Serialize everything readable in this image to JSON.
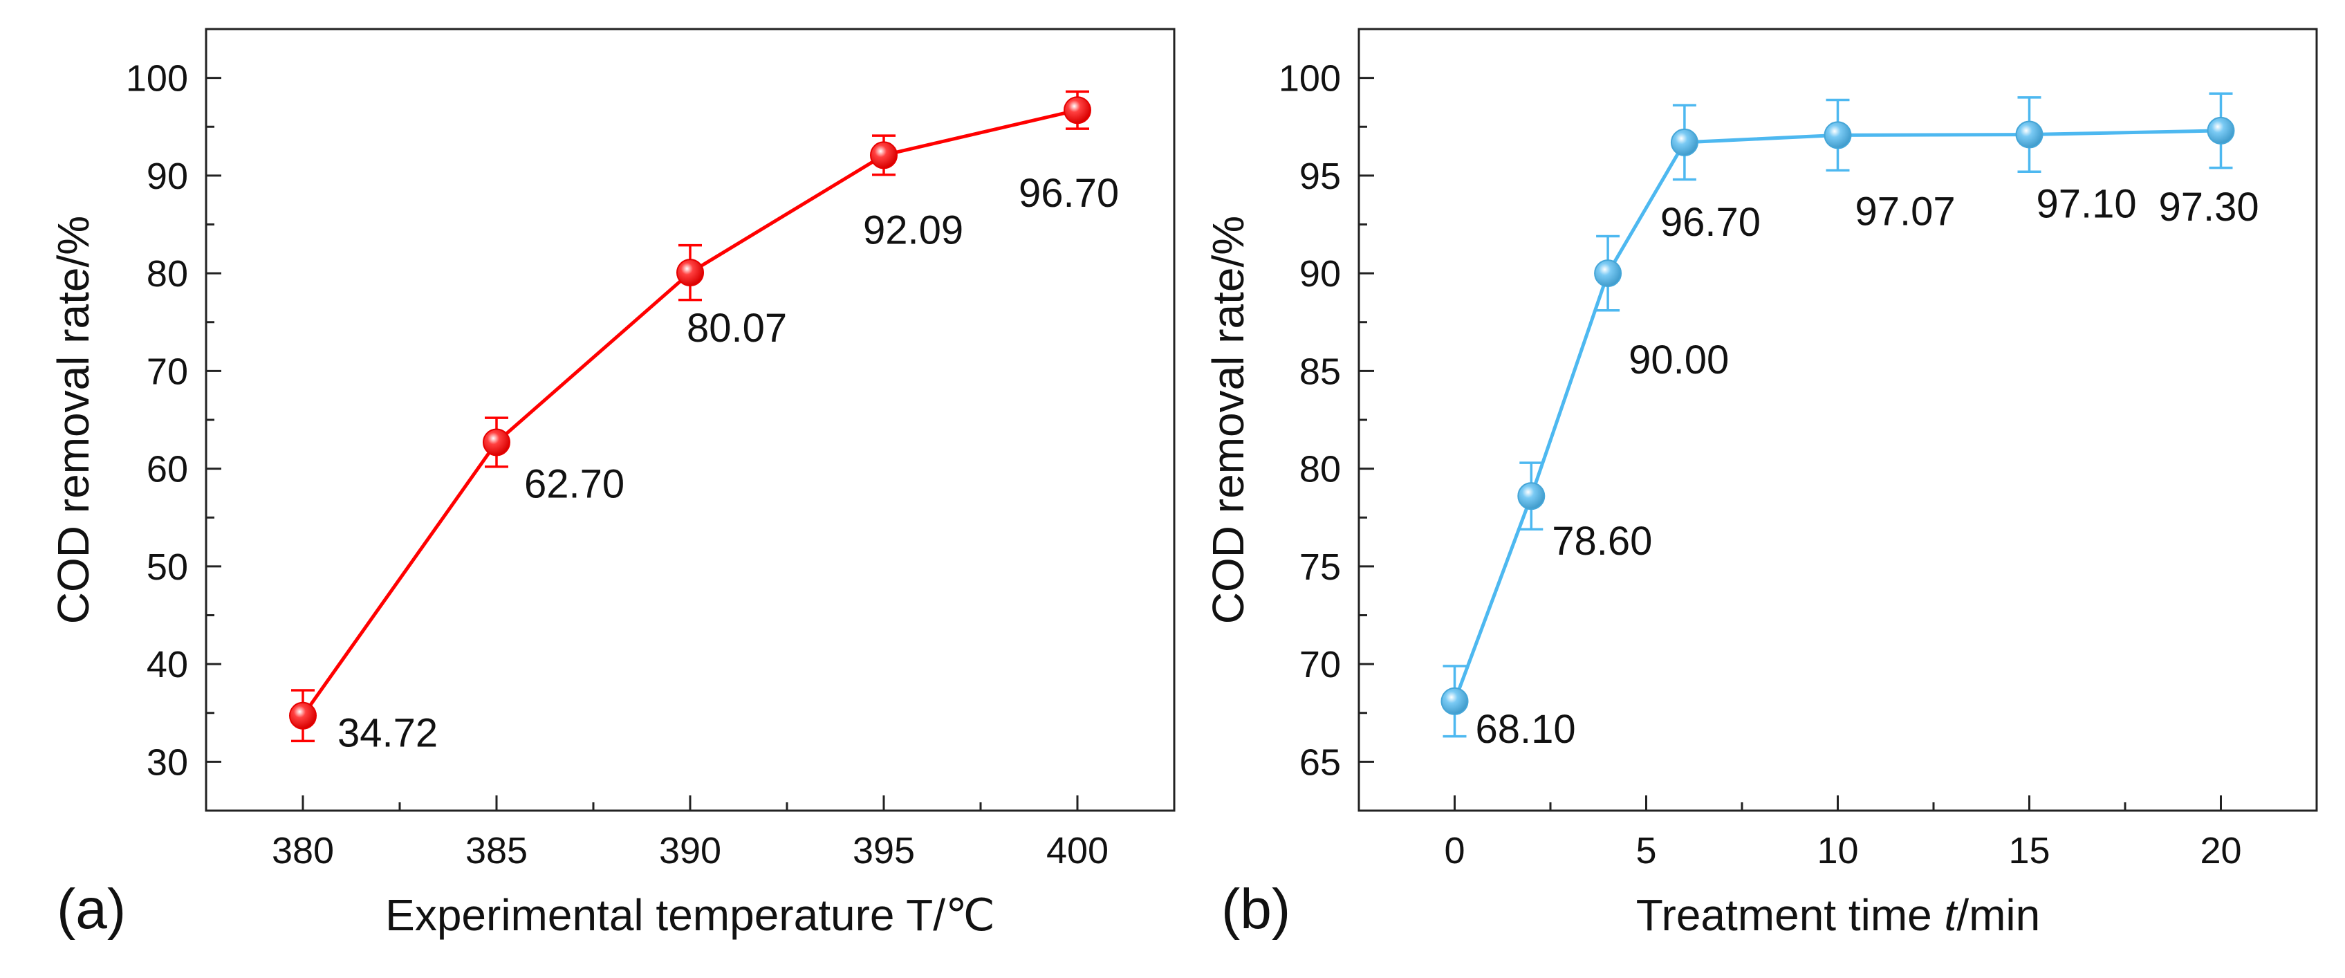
{
  "chart_data": [
    {
      "type": "line",
      "panel_label": "(a)",
      "title": "",
      "xlabel": "Experimental temperature T/℃",
      "ylabel": "COD removal rate/%",
      "color": "#ff0000",
      "x": [
        380,
        385,
        390,
        395,
        400
      ],
      "y": [
        34.72,
        62.7,
        80.07,
        92.09,
        96.7
      ],
      "error": [
        2.6,
        2.5,
        2.8,
        2.0,
        1.9
      ],
      "point_labels": [
        "34.72",
        "62.70",
        "80.07",
        "92.09",
        "96.70"
      ],
      "xlim": [
        377.5,
        402.5
      ],
      "ylim": [
        25,
        105
      ],
      "xticks": [
        380,
        385,
        390,
        395,
        400
      ],
      "xtick_labels": [
        "380",
        "385",
        "390",
        "395",
        "400"
      ],
      "yticks": [
        30,
        40,
        50,
        60,
        70,
        80,
        90,
        100
      ],
      "ytick_labels": [
        "30",
        "40",
        "50",
        "60",
        "70",
        "80",
        "90",
        "100"
      ]
    },
    {
      "type": "line",
      "panel_label": "(b)",
      "title": "",
      "xlabel_prefix": "Treatment time ",
      "xlabel_italic": "t",
      "xlabel_suffix": "/min",
      "ylabel": "COD removal rate/%",
      "color": "#4db8f0",
      "x": [
        0,
        2,
        4,
        6,
        10,
        15,
        20
      ],
      "y": [
        68.1,
        78.6,
        90.0,
        96.7,
        97.07,
        97.1,
        97.3
      ],
      "error": [
        1.8,
        1.7,
        1.9,
        1.9,
        1.8,
        1.9,
        1.9
      ],
      "point_labels": [
        "68.10",
        "78.60",
        "90.00",
        "96.70",
        "97.07",
        "97.10",
        "97.30"
      ],
      "xlim": [
        -2.5,
        22.5
      ],
      "ylim": [
        62.5,
        102.5
      ],
      "xticks": [
        0,
        5,
        10,
        15,
        20
      ],
      "xtick_labels": [
        "0",
        "5",
        "10",
        "15",
        "20"
      ],
      "yticks": [
        65,
        70,
        75,
        80,
        85,
        90,
        95,
        100
      ],
      "ytick_labels": [
        "65",
        "70",
        "75",
        "80",
        "85",
        "90",
        "95",
        "100"
      ]
    }
  ]
}
